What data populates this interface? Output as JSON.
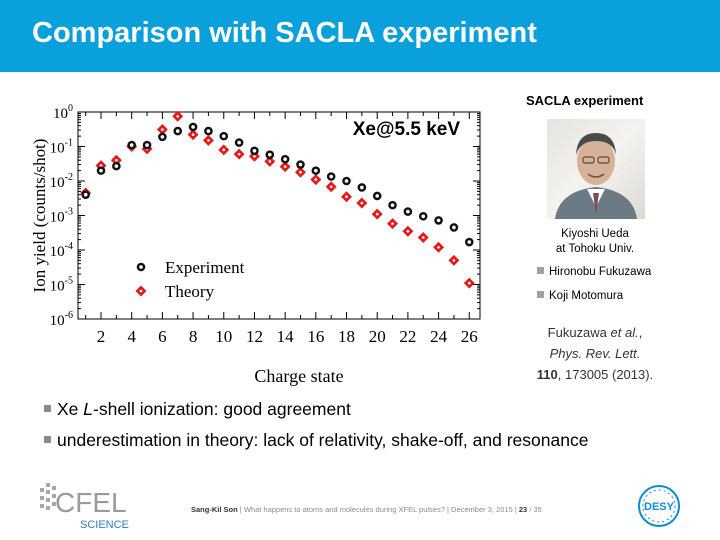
{
  "slide": {
    "title": "Comparison with SACLA experiment"
  },
  "chart_data": {
    "type": "scatter",
    "ylog": true,
    "ylim": [
      1e-06,
      1
    ],
    "xlim": [
      0.5,
      26.7
    ],
    "xticks": [
      "2",
      "4",
      "6",
      "8",
      "10",
      "12",
      "14",
      "16",
      "18",
      "20",
      "22",
      "24",
      "26"
    ],
    "yticks": [
      "10^0",
      "10^-1",
      "10^-2",
      "10^-3",
      "10^-4",
      "10^-5",
      "10^-6"
    ],
    "xlabel": "Charge state",
    "ylabel": "Ion yield (counts/shot)",
    "annotation": "Xe@5.5 keV",
    "legend": [
      "Experiment",
      "Theory"
    ],
    "series": [
      {
        "name": "Experiment",
        "x": [
          1,
          2,
          3,
          4,
          5,
          6,
          7,
          8,
          9,
          10,
          11,
          12,
          13,
          14,
          15,
          16,
          17,
          18,
          19,
          20,
          21,
          22,
          23,
          24,
          25,
          26
        ],
        "y": [
          0.004,
          0.02,
          0.027,
          0.11,
          0.11,
          0.19,
          0.28,
          0.37,
          0.28,
          0.2,
          0.13,
          0.075,
          0.058,
          0.043,
          0.03,
          0.02,
          0.0135,
          0.01,
          0.0065,
          0.0037,
          0.002,
          0.0013,
          0.00095,
          0.00072,
          0.00045,
          0.00017
        ]
      },
      {
        "name": "Theory",
        "x": [
          1,
          2,
          3,
          4,
          5,
          6,
          7,
          8,
          9,
          10,
          11,
          12,
          13,
          14,
          15,
          16,
          17,
          18,
          19,
          20,
          21,
          22,
          23,
          24,
          25,
          26
        ],
        "y": [
          0.0045,
          0.028,
          0.04,
          0.1,
          0.085,
          0.31,
          0.75,
          0.22,
          0.15,
          0.08,
          0.06,
          0.052,
          0.037,
          0.026,
          0.018,
          0.011,
          0.0068,
          0.0035,
          0.0023,
          0.0011,
          0.00058,
          0.00035,
          0.00023,
          0.00012,
          5e-05,
          1.1e-05
        ]
      }
    ]
  },
  "sacla": {
    "title": "SACLA experiment",
    "photo_caption_name": "Kiyoshi Ueda",
    "photo_caption_affil": "at Tohoku Univ.",
    "people": [
      "Hironobu Fukuzawa",
      "Koji Motomura"
    ],
    "citation_authors": "Fukuzawa",
    "citation_etal": "et al.",
    "citation_journal": "Phys. Rev. Lett.",
    "citation_volume": "110",
    "citation_rest": ", 173005 (2013)."
  },
  "bullets": {
    "b1_pre": "Xe ",
    "b1_em": "L",
    "b1_post": "-shell ionization: good agreement",
    "b2": "underestimation in theory: lack of relativity, shake-off, and resonance"
  },
  "footer": {
    "logo_text": "CFEL",
    "logo_sub": "SCIENCE",
    "author": "Sang-Kil Son",
    "sep": "|",
    "talk": "What happens to atoms and molecules during XFEL pulses?",
    "date": "December 3, 2015",
    "page": "23",
    "total": "/ 35",
    "desy": "DESY"
  },
  "colors": {
    "header": "#0aa0dc",
    "theory": "#e31b1b",
    "experiment": "#111111",
    "desy": "#0b8fd0"
  }
}
